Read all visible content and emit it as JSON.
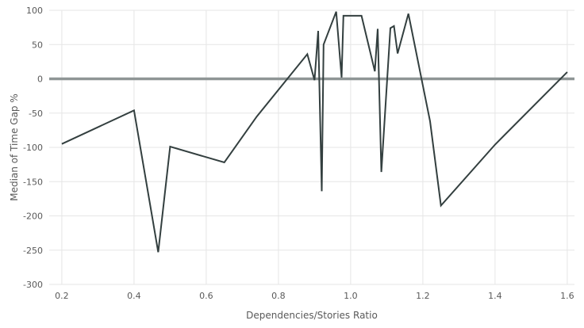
{
  "chart_data": {
    "type": "line",
    "title": "",
    "xlabel": "Dependencies/Stories Ratio",
    "ylabel": "Median of Time Gap %",
    "xlim": [
      0.2,
      1.6
    ],
    "ylim": [
      -300,
      100
    ],
    "x_ticks": [
      0.2,
      0.4,
      0.6,
      0.8,
      1.0,
      1.2,
      1.4,
      1.6
    ],
    "x_tick_labels": [
      "0.2",
      "0.4",
      "0.6",
      "0.8",
      "1.0",
      "1.2",
      "1.4",
      "1.6"
    ],
    "y_ticks": [
      100,
      50,
      0,
      -50,
      -100,
      -150,
      -200,
      -250,
      -300
    ],
    "y_tick_labels": [
      "100",
      "50",
      "0",
      "-50",
      "-100",
      "-150",
      "-200",
      "-250",
      "-300"
    ],
    "grid": true,
    "zero_line": true,
    "legend": "none",
    "series": [
      {
        "color": "#333f3f",
        "x": [
          0.2,
          0.4,
          0.467,
          0.5,
          0.65,
          0.74,
          0.88,
          0.9,
          0.91,
          0.92,
          0.925,
          0.96,
          0.975,
          0.98,
          1.03,
          1.067,
          1.075,
          1.085,
          1.11,
          1.12,
          1.13,
          1.16,
          1.22,
          1.25,
          1.4,
          1.6
        ],
        "y": [
          -95,
          -46,
          -253,
          -99,
          -122,
          -55,
          36,
          -2,
          70,
          -164,
          50,
          98,
          2,
          92,
          92,
          11,
          73,
          -136,
          74,
          77,
          37,
          95,
          -62,
          -185,
          -96,
          10
        ]
      }
    ]
  }
}
